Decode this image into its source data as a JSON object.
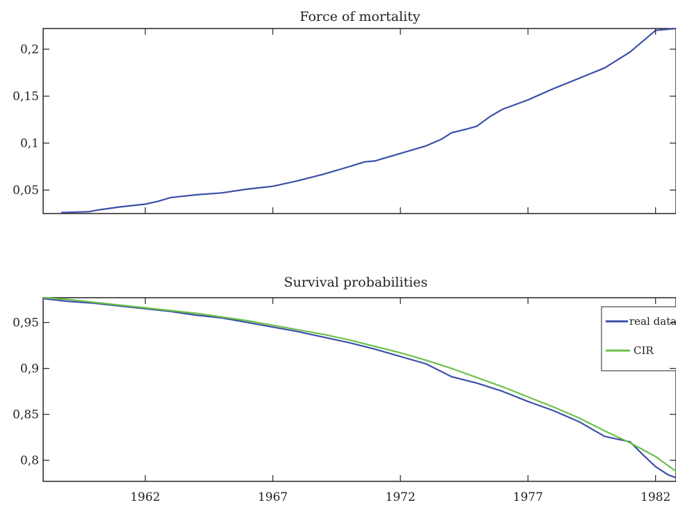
{
  "chart_data": [
    {
      "type": "line",
      "title": "Force of mortality",
      "xlabel": "",
      "ylabel": "",
      "xlim": [
        1958,
        1982.8
      ],
      "ylim": [
        0.025,
        0.222
      ],
      "xticks": [
        1962,
        1967,
        1972,
        1977,
        1982
      ],
      "yticks": [
        0.05,
        0.1,
        0.15,
        0.2
      ],
      "ytick_labels": [
        "0,05",
        "0,1",
        "0,15",
        "0,2"
      ],
      "grid": false,
      "series": [
        {
          "color": "#3b4fa8",
          "x": [
            1958.7,
            1959.8,
            1960.2,
            1961,
            1962,
            1962.5,
            1963,
            1964,
            1965,
            1966,
            1967,
            1968,
            1969,
            1970,
            1970.6,
            1971,
            1972,
            1973,
            1973.6,
            1974,
            1974.6,
            1975,
            1975.5,
            1976,
            1977,
            1978,
            1979,
            1980,
            1981,
            1982,
            1982.8
          ],
          "y": [
            0.026,
            0.027,
            0.029,
            0.032,
            0.035,
            0.038,
            0.042,
            0.045,
            0.047,
            0.051,
            0.054,
            0.06,
            0.067,
            0.075,
            0.08,
            0.081,
            0.089,
            0.097,
            0.104,
            0.111,
            0.115,
            0.118,
            0.128,
            0.136,
            0.146,
            0.158,
            0.169,
            0.18,
            0.197,
            0.22,
            0.222
          ]
        }
      ]
    },
    {
      "type": "line",
      "title": "Survival probabilities",
      "xlabel": "",
      "ylabel": "",
      "xlim": [
        1958,
        1982.8
      ],
      "ylim": [
        0.777,
        0.977
      ],
      "xticks": [
        1962,
        1967,
        1972,
        1977,
        1982
      ],
      "xtick_labels": [
        "1962",
        "1967",
        "1972",
        "1977",
        "1982"
      ],
      "yticks": [
        0.8,
        0.85,
        0.9,
        0.95
      ],
      "ytick_labels": [
        "0,8",
        "0,85",
        "0,9",
        "0,95"
      ],
      "grid": false,
      "legend": "top-right",
      "series": [
        {
          "name": "real data",
          "color": "#3b4fa8",
          "x": [
            1958,
            1959,
            1960,
            1961,
            1962,
            1963,
            1964,
            1965,
            1966,
            1967,
            1968,
            1969,
            1970,
            1971,
            1972,
            1973,
            1974,
            1975,
            1976,
            1977,
            1978,
            1979,
            1980,
            1981,
            1981.5,
            1982,
            1982.5,
            1982.8
          ],
          "y": [
            0.976,
            0.973,
            0.971,
            0.968,
            0.965,
            0.962,
            0.958,
            0.955,
            0.95,
            0.945,
            0.94,
            0.934,
            0.928,
            0.921,
            0.913,
            0.905,
            0.891,
            0.884,
            0.875,
            0.864,
            0.854,
            0.842,
            0.826,
            0.82,
            0.806,
            0.793,
            0.784,
            0.781
          ]
        },
        {
          "name": "CIR",
          "color": "#6cc04a",
          "x": [
            1958,
            1959,
            1960,
            1961,
            1962,
            1963,
            1964,
            1965,
            1966,
            1967,
            1968,
            1969,
            1970,
            1971,
            1972,
            1973,
            1974,
            1975,
            1976,
            1977,
            1978,
            1979,
            1980,
            1981,
            1982,
            1982.8
          ],
          "y": [
            0.977,
            0.975,
            0.972,
            0.969,
            0.966,
            0.963,
            0.96,
            0.956,
            0.952,
            0.947,
            0.942,
            0.937,
            0.931,
            0.924,
            0.917,
            0.909,
            0.9,
            0.89,
            0.88,
            0.869,
            0.858,
            0.846,
            0.832,
            0.819,
            0.804,
            0.788
          ]
        }
      ]
    }
  ]
}
